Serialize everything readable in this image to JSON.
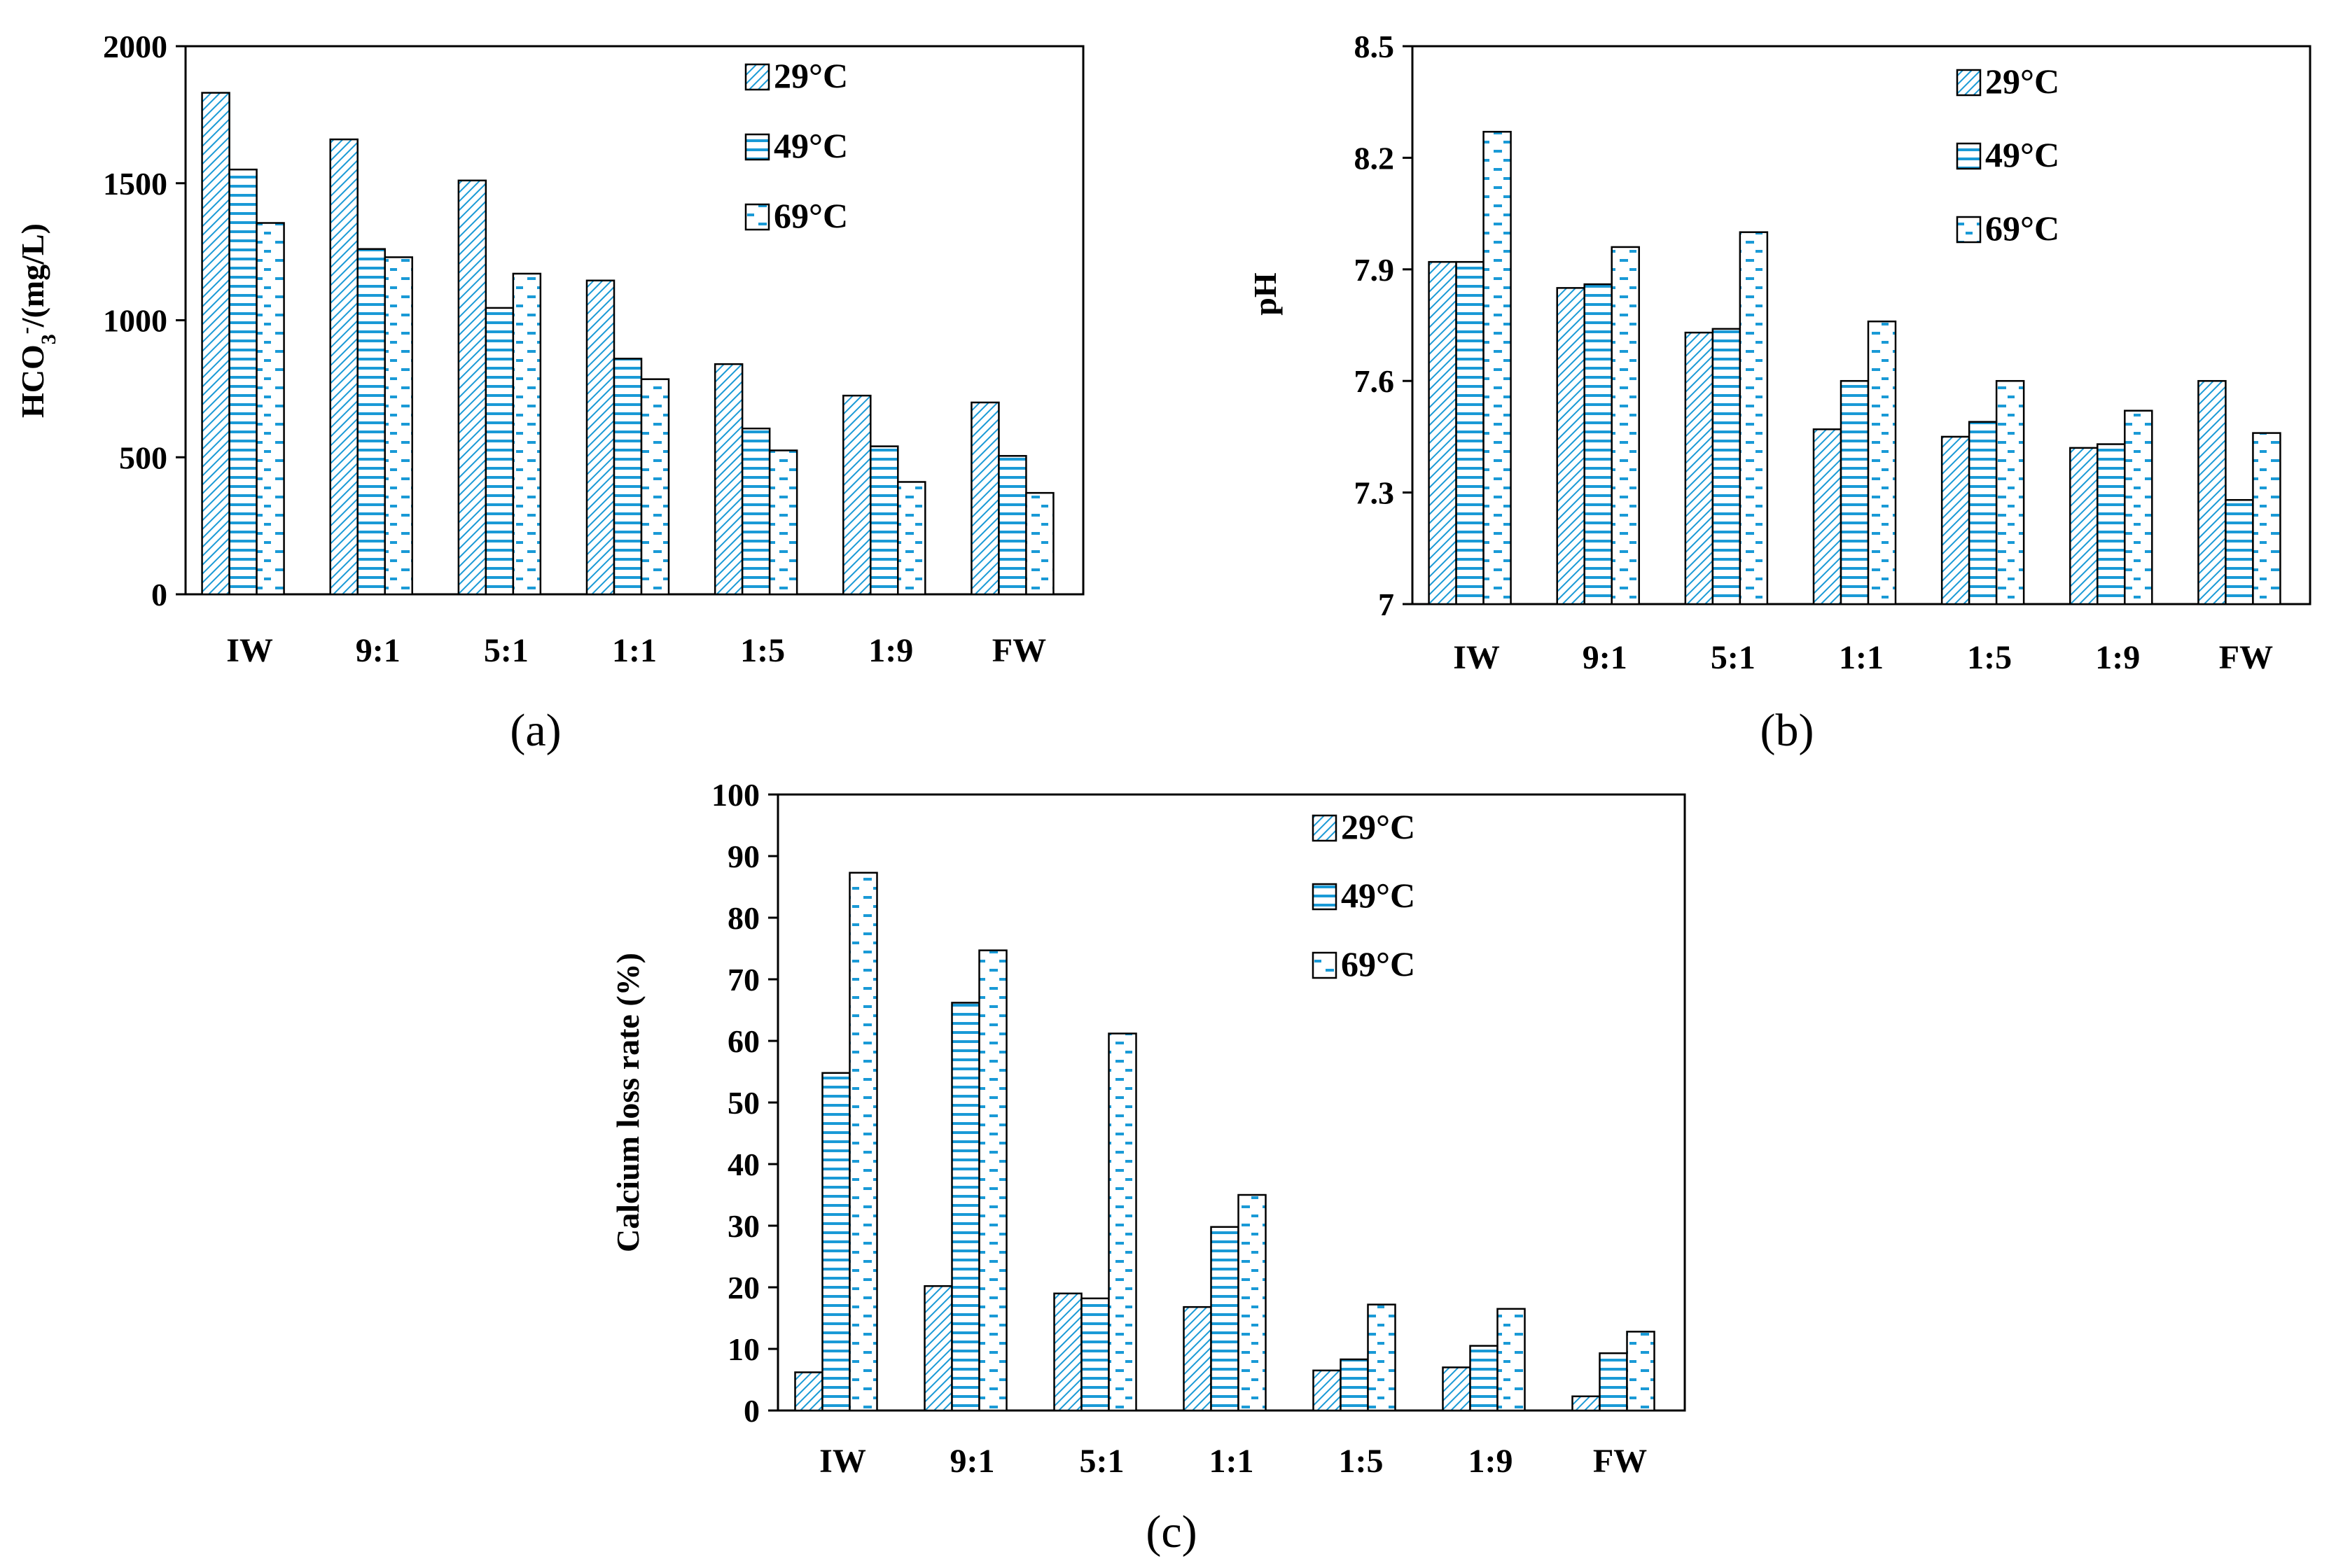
{
  "patterns": {
    "primary": "#1a9ad6",
    "secondary": "#6ec8ee"
  },
  "panels": [
    {
      "id": "a",
      "label": "(a)",
      "chart_data": {
        "type": "bar",
        "categories": [
          "IW",
          "9:1",
          "5:1",
          "1:1",
          "1:5",
          "1:9",
          "FW"
        ],
        "series": [
          {
            "name": "29°C",
            "pattern": "diagonal",
            "values": [
              1830,
              1660,
              1510,
              1145,
              840,
              725,
              700
            ]
          },
          {
            "name": "49°C",
            "pattern": "horizontal",
            "values": [
              1550,
              1260,
              1045,
              860,
              605,
              540,
              505
            ]
          },
          {
            "name": "69°C",
            "pattern": "dashed",
            "values": [
              1355,
              1230,
              1170,
              785,
              525,
              410,
              370
            ]
          }
        ],
        "ylabel_main": "HCO",
        "ylabel_sub": "3",
        "ylabel_sup": "-",
        "ylabel_tail": "/(mg/L)",
        "ylim": [
          0,
          2000
        ],
        "yticks": [
          0,
          500,
          1000,
          1500,
          2000
        ],
        "ytick_labels": [
          "0",
          "500",
          "1000",
          "1500",
          "2000"
        ],
        "legend": [
          "29°C",
          "49°C",
          "69°C"
        ],
        "legend_position": "top-right"
      }
    },
    {
      "id": "b",
      "label": "(b)",
      "chart_data": {
        "type": "bar",
        "categories": [
          "IW",
          "9:1",
          "5:1",
          "1:1",
          "1:5",
          "1:9",
          "FW"
        ],
        "series": [
          {
            "name": "29°C",
            "pattern": "diagonal",
            "values": [
              7.92,
              7.85,
              7.73,
              7.47,
              7.45,
              7.42,
              7.6
            ]
          },
          {
            "name": "49°C",
            "pattern": "horizontal",
            "values": [
              7.92,
              7.86,
              7.74,
              7.6,
              7.49,
              7.43,
              7.28
            ]
          },
          {
            "name": "69°C",
            "pattern": "dashed",
            "values": [
              8.27,
              7.96,
              8.0,
              7.76,
              7.6,
              7.52,
              7.46
            ]
          }
        ],
        "ylabel": "pH",
        "ylim": [
          7,
          8.5
        ],
        "yticks": [
          7,
          7.3,
          7.6,
          7.9,
          8.2,
          8.5
        ],
        "ytick_labels": [
          "7",
          "7.3",
          "7.6",
          "7.9",
          "8.2",
          "8.5"
        ],
        "legend": [
          "29°C",
          "49°C",
          "69°C"
        ],
        "legend_position": "top-right"
      }
    },
    {
      "id": "c",
      "label": "(c)",
      "chart_data": {
        "type": "bar",
        "categories": [
          "IW",
          "9:1",
          "5:1",
          "1:1",
          "1:5",
          "1:9",
          "FW"
        ],
        "series": [
          {
            "name": "29°C",
            "pattern": "diagonal",
            "values": [
              6.2,
              20.2,
              19.0,
              16.8,
              6.5,
              7.0,
              2.3
            ]
          },
          {
            "name": "49°C",
            "pattern": "horizontal",
            "values": [
              54.8,
              66.2,
              18.2,
              29.8,
              8.3,
              10.5,
              9.3
            ]
          },
          {
            "name": "69°C",
            "pattern": "dashed",
            "values": [
              87.3,
              74.7,
              61.2,
              35.0,
              17.2,
              16.5,
              12.8
            ]
          }
        ],
        "ylabel": "Calcium loss rate (%)",
        "ylim": [
          0,
          100
        ],
        "yticks": [
          0,
          10,
          20,
          30,
          40,
          50,
          60,
          70,
          80,
          90,
          100
        ],
        "ytick_labels": [
          "0",
          "10",
          "20",
          "30",
          "40",
          "50",
          "60",
          "70",
          "80",
          "90",
          "100"
        ],
        "legend": [
          "29°C",
          "49°C",
          "69°C"
        ],
        "legend_position": "top-right"
      }
    }
  ]
}
